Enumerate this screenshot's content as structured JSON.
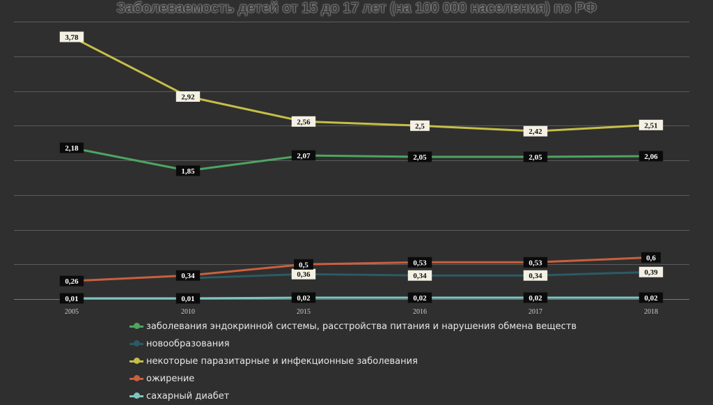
{
  "chart_data": {
    "type": "line",
    "title": "Заболеваемость детей от 15 до 17 лет (на 100 000 населения) по РФ",
    "categories": [
      "2005",
      "2010",
      "2015",
      "2016",
      "2017",
      "2018"
    ],
    "ylim": [
      0,
      4
    ],
    "grid": true,
    "legend_position": "bottom",
    "series": [
      {
        "name": "заболевания эндокринной системы, расстройства питания и нарушения обмена веществ",
        "color": "#4ea562",
        "values": [
          2.18,
          1.85,
          2.07,
          2.05,
          2.05,
          2.06
        ],
        "labels": [
          "2,18",
          "1,85",
          "2,07",
          "2,05",
          "2,05",
          "2,06"
        ],
        "label_style": "dark"
      },
      {
        "name": "новообразования",
        "color": "#2c5a66",
        "values": [
          null,
          0.3,
          0.36,
          0.34,
          0.34,
          0.39
        ],
        "labels": [
          "",
          "",
          "0,36",
          "0,34",
          "0,34",
          "0,39"
        ],
        "label_style": "light"
      },
      {
        "name": "некоторые паразитарные и инфекционные заболевания",
        "color": "#c6be48",
        "values": [
          3.78,
          2.92,
          2.56,
          2.5,
          2.42,
          2.51
        ],
        "labels": [
          "3,78",
          "2,92",
          "2,56",
          "2,5",
          "2,42",
          "2,51"
        ],
        "label_style": "light"
      },
      {
        "name": "ожирение",
        "color": "#c9603f",
        "values": [
          0.26,
          0.34,
          0.5,
          0.53,
          0.53,
          0.6
        ],
        "labels": [
          "0,26",
          "0,34",
          "0,5",
          "0,53",
          "0,53",
          "0,6"
        ],
        "label_style": "dark"
      },
      {
        "name": "сахарный диабет",
        "color": "#7cc6c0",
        "values": [
          0.01,
          0.01,
          0.02,
          0.02,
          0.02,
          0.02
        ],
        "labels": [
          "0,01",
          "0,01",
          "0,02",
          "0,02",
          "0,02",
          "0,02"
        ],
        "label_style": "dark"
      }
    ]
  }
}
